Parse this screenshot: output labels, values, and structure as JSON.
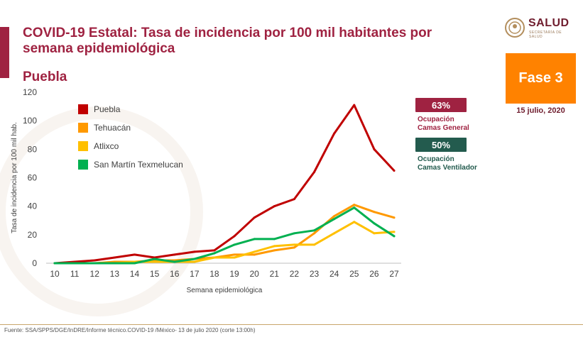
{
  "title": "COVID-19 Estatal: Tasa de incidencia por 100 mil habitantes por semana epidemiológica",
  "region": "Puebla",
  "logo": {
    "text": "SALUD",
    "subtext": "SECRETARÍA DE SALUD",
    "icon": "coat-of-arms-icon"
  },
  "phase": {
    "label": "Fase 3",
    "date": "15 julio, 2020"
  },
  "occupancy": {
    "general": {
      "value": "63%",
      "label_line1": "Ocupación",
      "label_line2": "Camas General"
    },
    "ventilator": {
      "value": "50%",
      "label_line1": "Ocupación",
      "label_line2": "Camas Ventilador"
    }
  },
  "footer": "Fuente: SSA/SPPS/DGE/InDRE/Informe técnico.COVID-19 /México- 13 de julio 2020 (corte 13:00h)",
  "colors": {
    "brand": "#9f2241",
    "green_dark": "#235b4e",
    "phase": "#ff8200"
  },
  "chart_data": {
    "type": "line",
    "title": "",
    "xlabel": "Semana epidemiológica",
    "ylabel": "Tasa de incidencia por 100 mil hab.",
    "x": [
      10,
      11,
      12,
      13,
      14,
      15,
      16,
      17,
      18,
      19,
      20,
      21,
      22,
      23,
      24,
      25,
      26,
      27
    ],
    "ylim": [
      0,
      120
    ],
    "yticks": [
      0,
      20,
      40,
      60,
      80,
      100,
      120
    ],
    "grid": false,
    "legend_position": "top-left",
    "series": [
      {
        "name": "Puebla",
        "color": "#c00000",
        "values": [
          0,
          1,
          2,
          4,
          6,
          4,
          6,
          8,
          9,
          19,
          32,
          40,
          45,
          64,
          91,
          111,
          80,
          65
        ]
      },
      {
        "name": "Tehuacán",
        "color": "#ff9900",
        "values": [
          0,
          0,
          0,
          1,
          1,
          2,
          2,
          3,
          4,
          6,
          6,
          9,
          11,
          21,
          33,
          41,
          36,
          32
        ]
      },
      {
        "name": "Atlixco",
        "color": "#ffc000",
        "values": [
          0,
          0,
          0,
          0,
          1,
          1,
          1,
          1,
          4,
          4,
          8,
          12,
          13,
          13,
          21,
          29,
          21,
          22
        ]
      },
      {
        "name": "San Martín Texmelucan",
        "color": "#00b050",
        "values": [
          0,
          0,
          0,
          0,
          0,
          3,
          1,
          3,
          7,
          13,
          17,
          17,
          21,
          23,
          31,
          39,
          28,
          19
        ]
      }
    ]
  }
}
